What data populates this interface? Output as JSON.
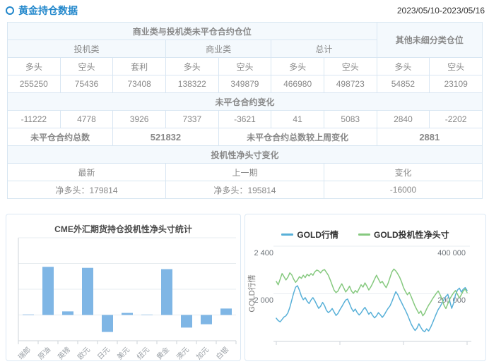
{
  "header": {
    "title": "黄金持仓数据",
    "date_range": "2023/05/10-2023/05/16"
  },
  "colors": {
    "accent_blue": "#2287cb",
    "table_blue_text": "#2793d5",
    "orange": "#fa6c4b",
    "orange_bold": "#f55c28",
    "green": "#27a59b",
    "table_border": "#d8e6f2",
    "section_bg": "#f4f9fd",
    "bar_blue": "#7fb6e5",
    "line_blue": "#58b0d8",
    "line_green": "#86c97f"
  },
  "table": {
    "rows": [
      {
        "cells": [
          {
            "t": "商业类与投机类未平仓合约仓位",
            "cs": 7,
            "cls": "bh",
            "bg": 1
          },
          {
            "t": "其他未细分类仓位",
            "cs": 2,
            "rs": 2,
            "cls": "bh",
            "bg": 1
          }
        ]
      },
      {
        "cells": [
          {
            "t": "投机类",
            "cs": 3,
            "cls": "gh",
            "bg": 1
          },
          {
            "t": "商业类",
            "cs": 2,
            "cls": "gh",
            "bg": 1
          },
          {
            "t": "总计",
            "cs": 2,
            "cls": "gh",
            "bg": 1
          }
        ]
      },
      {
        "cells": [
          {
            "t": "多头",
            "cls": "gh"
          },
          {
            "t": "空头",
            "cls": "gh"
          },
          {
            "t": "套利",
            "cls": "gh"
          },
          {
            "t": "多头",
            "cls": "gh"
          },
          {
            "t": "空头",
            "cls": "gh"
          },
          {
            "t": "多头",
            "cls": "gh"
          },
          {
            "t": "空头",
            "cls": "gh"
          },
          {
            "t": "多头",
            "cls": "gh"
          },
          {
            "t": "空头",
            "cls": "gh"
          }
        ]
      },
      {
        "cells": [
          {
            "t": "255250",
            "cls": "no"
          },
          {
            "t": "75436",
            "cls": "no"
          },
          {
            "t": "73408",
            "cls": "no"
          },
          {
            "t": "138322",
            "cls": "no"
          },
          {
            "t": "349879",
            "cls": "no"
          },
          {
            "t": "466980",
            "cls": "no"
          },
          {
            "t": "498723",
            "cls": "no"
          },
          {
            "t": "54852",
            "cls": "no"
          },
          {
            "t": "23109",
            "cls": "no"
          }
        ]
      },
      {
        "cells": [
          {
            "t": "未平仓合约变化",
            "cs": 9,
            "cls": "bh",
            "bg": 1
          }
        ]
      },
      {
        "cells": [
          {
            "t": "-11222",
            "cls": "ng"
          },
          {
            "t": "4778",
            "cls": "no"
          },
          {
            "t": "3926",
            "cls": "no"
          },
          {
            "t": "7337",
            "cls": "no"
          },
          {
            "t": "-3621",
            "cls": "ng"
          },
          {
            "t": "41",
            "cls": "no"
          },
          {
            "t": "5083",
            "cls": "no"
          },
          {
            "t": "2840",
            "cls": "no"
          },
          {
            "t": "-2202",
            "cls": "ng"
          }
        ]
      },
      {
        "cells": [
          {
            "t": "未平仓合约总数",
            "cs": 2,
            "cls": "bh"
          },
          {
            "t": "521832",
            "cs": 2,
            "cls": "nb"
          },
          {
            "t": "未平仓合约总数较上周变化",
            "cs": 3,
            "cls": "bh"
          },
          {
            "t": "2881",
            "cs": 2,
            "cls": "nb"
          }
        ]
      },
      {
        "cells": [
          {
            "t": "投机性净头寸变化",
            "cs": 9,
            "cls": "bh",
            "bg": 1
          }
        ]
      },
      {
        "cells": [
          {
            "t": "最新",
            "cs": 3,
            "cls": "gh"
          },
          {
            "t": "上一期",
            "cs": 3,
            "cls": "gh"
          },
          {
            "t": "变化",
            "cs": 3,
            "cls": "gh"
          }
        ]
      },
      {
        "cells": [
          {
            "pre": "净多头：",
            "t": "179814",
            "cs": 3,
            "cls": "no"
          },
          {
            "pre": "净多头：",
            "t": "195814",
            "cs": 3,
            "cls": "no"
          },
          {
            "t": "-16000",
            "cs": 3,
            "cls": "ng"
          }
        ]
      }
    ]
  },
  "chart_data": [
    {
      "type": "bar",
      "title": "CME外汇期货持仓投机性净头寸统计",
      "categories": [
        "瑞郎",
        "原油",
        "英镑",
        "欧元",
        "日元",
        "美元",
        "纽元",
        "黄金",
        "澳元",
        "加元",
        "白银"
      ],
      "values": [
        2000,
        187000,
        14000,
        183000,
        -66000,
        8000,
        1000,
        178000,
        -49000,
        -36000,
        25000
      ],
      "ylim": [
        -100000,
        300000
      ],
      "grid_interval": 100000,
      "y_axis_labels_visible": false,
      "bar_color": "#7fb6e5",
      "note": "y-axis has no tick labels; values estimated from gridlines (one interval ≈ 100000)"
    },
    {
      "type": "line",
      "legend": [
        "GOLD行情",
        "GOLD投机性净头寸"
      ],
      "y_axis_left": {
        "title": "GOLD行情",
        "ticks": [
          "2 400",
          "2 000"
        ],
        "range_est": [
          1600,
          2450
        ]
      },
      "y_axis_right": {
        "ticks": [
          "400 000",
          "200 000"
        ],
        "range_est": [
          0,
          420000
        ]
      },
      "x_axis": {
        "tick_count": 4,
        "labels_visible": false
      },
      "series": [
        {
          "name": "GOLD行情",
          "axis": "left",
          "color": "#58b0d8",
          "values": [
            1795,
            1775,
            1765,
            1785,
            1805,
            1815,
            1840,
            1885,
            1945,
            2005,
            2055,
            2068,
            2030,
            1980,
            1950,
            1968,
            1938,
            1918,
            1948,
            1968,
            1942,
            1908,
            1878,
            1896,
            1928,
            1902,
            1862,
            1842,
            1856,
            1876,
            1848,
            1818,
            1836,
            1866,
            1892,
            1922,
            1948,
            1956,
            1918,
            1878,
            1852,
            1872,
            1842,
            1822,
            1840,
            1866,
            1886,
            1858,
            1828,
            1846,
            1818,
            1798,
            1816,
            1842,
            1824,
            1802,
            1822,
            1852,
            1878,
            1898,
            1934,
            1978,
            2018,
            1994,
            1958,
            1926,
            1892,
            1862,
            1826,
            1786,
            1746,
            1716,
            1692,
            1712,
            1748,
            1718,
            1692,
            1682,
            1706,
            1688,
            1716,
            1752,
            1792,
            1832,
            1868,
            1892,
            1922,
            1952,
            1978,
            1996,
            1938,
            1878,
            1922,
            1992,
            2032,
            2048,
            2014,
            2038,
            2052,
            2028
          ]
        },
        {
          "name": "GOLD投机性净头寸",
          "axis": "right",
          "color": "#86c97f",
          "values": [
            252000,
            238000,
            262000,
            285000,
            272000,
            258000,
            270000,
            288000,
            280000,
            262000,
            248000,
            258000,
            272000,
            265000,
            278000,
            268000,
            282000,
            275000,
            285000,
            278000,
            292000,
            300000,
            296000,
            288000,
            298000,
            302000,
            290000,
            278000,
            258000,
            236000,
            215000,
            205000,
            212000,
            228000,
            242000,
            225000,
            208000,
            218000,
            232000,
            212000,
            202000,
            214000,
            206000,
            222000,
            238000,
            228000,
            246000,
            232000,
            216000,
            228000,
            244000,
            262000,
            278000,
            262000,
            246000,
            252000,
            238000,
            226000,
            244000,
            268000,
            292000,
            304000,
            296000,
            284000,
            270000,
            250000,
            226000,
            210000,
            196000,
            206000,
            188000,
            168000,
            148000,
            132000,
            118000,
            128000,
            108000,
            118000,
            136000,
            152000,
            164000,
            178000,
            190000,
            202000,
            212000,
            196000,
            178000,
            152000,
            138000,
            158000,
            178000,
            192000,
            204000,
            214000,
            198000,
            182000,
            196000,
            212000,
            220000,
            205000
          ]
        }
      ],
      "note": "series values estimated from pixel positions; no x-axis labels visible"
    }
  ]
}
